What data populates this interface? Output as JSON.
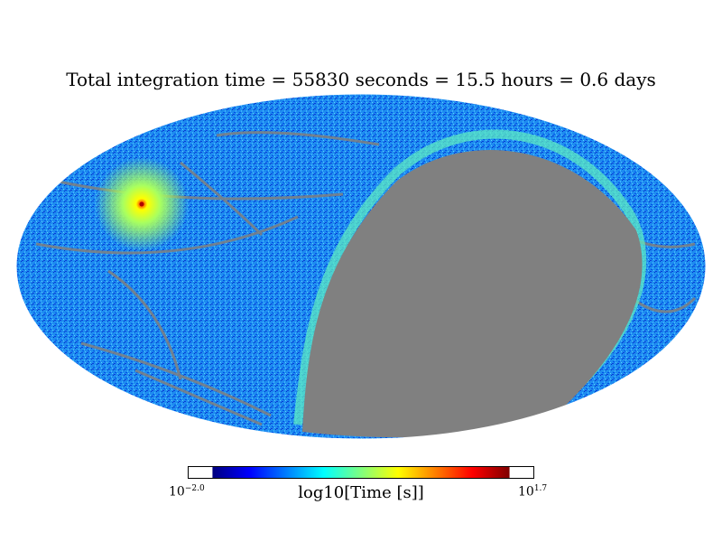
{
  "title": "Total integration time = 55830 seconds = 15.5 hours = 0.6 days",
  "colorbar": {
    "label": "log10[Time [s]]",
    "min_base": "10",
    "min_exp": "−2.0",
    "max_base": "10",
    "max_exp": "1.7",
    "stops": [
      "#00007f",
      "#0000ff",
      "#007fff",
      "#00ffff",
      "#7fff7f",
      "#ffff00",
      "#ff7f00",
      "#ff0000",
      "#7f0000"
    ]
  },
  "map": {
    "projection": "mollweide",
    "unobserved_color": "#808080",
    "background_color": "#1e8cf0"
  }
}
